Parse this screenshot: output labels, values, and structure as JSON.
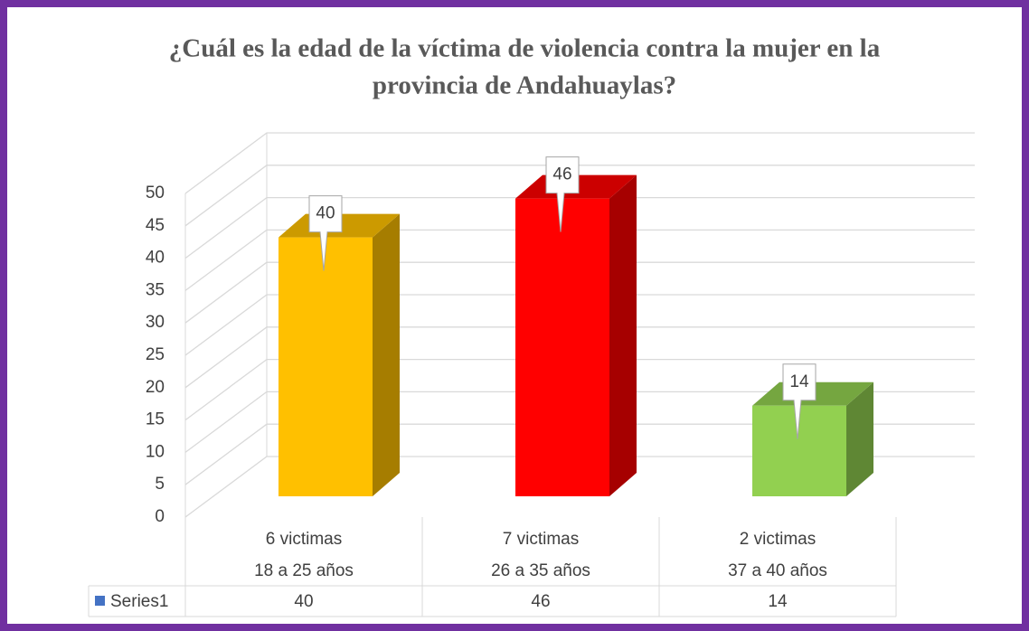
{
  "chart_data": {
    "type": "bar3d",
    "title": [
      "¿Cuál es la  edad de la víctima de violencia contra la mujer en la",
      "provincia de Andahuaylas?"
    ],
    "categories": [
      [
        "6 victimas",
        "18 a  25 años"
      ],
      [
        "7 victimas",
        "26 a 35 años"
      ],
      [
        "2 victimas",
        "37 a 40 años"
      ]
    ],
    "series": [
      {
        "name": "Series1",
        "color": "#4472c4",
        "values": [
          40,
          46,
          14
        ]
      }
    ],
    "colors": [
      "#ffc000",
      "#ff0000",
      "#92d050"
    ],
    "ylim": [
      0,
      50
    ],
    "yticks": [
      0,
      5,
      10,
      15,
      20,
      25,
      30,
      35,
      40,
      45,
      50
    ],
    "grid": true
  }
}
